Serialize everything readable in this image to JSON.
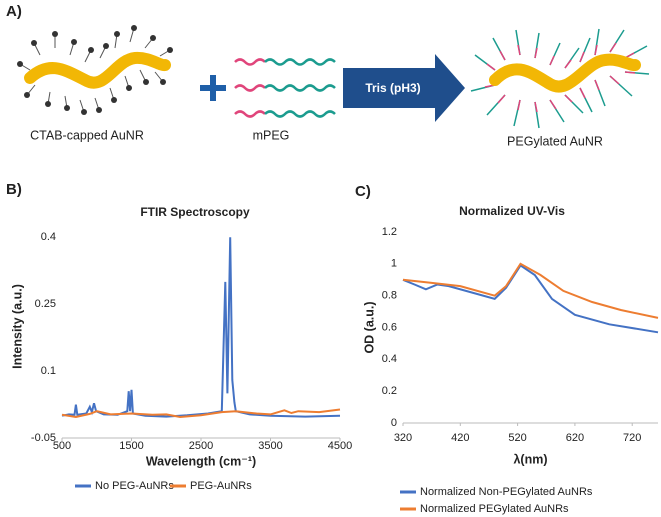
{
  "diagram": {
    "label": "A)",
    "left": "CTAB-capped AuNR",
    "middle": "mPEG",
    "arrow": "Tris (pH3)",
    "right": "PEGylated AuNR",
    "label_b": "B)",
    "label_c": "C)"
  },
  "chart_data": [
    {
      "type": "line",
      "title": "FTIR Spectroscopy",
      "x_label": "Wavelength (cm⁻¹)",
      "y_label": "Intensity (a.u.)",
      "xlim": [
        500,
        4500
      ],
      "xticks": [
        500,
        1500,
        2500,
        3500,
        4500
      ],
      "ylim": [
        -0.05,
        0.45
      ],
      "yticks": [
        -0.05,
        0.1,
        0.25,
        0.4
      ],
      "grid": false,
      "legend": "bottom",
      "series": [
        {
          "name": "No PEG-AuNRs",
          "color": "#4472c4",
          "x": [
            500,
            600,
            680,
            700,
            720,
            850,
            900,
            930,
            960,
            990,
            1100,
            1300,
            1440,
            1460,
            1480,
            1500,
            1520,
            1700,
            2000,
            2300,
            2600,
            2800,
            2850,
            2880,
            2920,
            2950,
            2980,
            3000,
            3200,
            3500,
            4000,
            4500
          ],
          "values": [
            0,
            0.003,
            0.002,
            0.025,
            0.002,
            0.005,
            0.02,
            0.008,
            0.028,
            0.01,
            0.003,
            0.002,
            0.01,
            0.055,
            0.01,
            0.058,
            0.005,
            0,
            -0.002,
            0.001,
            0.005,
            0.01,
            0.3,
            0.05,
            0.4,
            0.08,
            0.03,
            0.01,
            0.003,
            0,
            -0.002,
            0
          ]
        },
        {
          "name": "PEG-AuNRs",
          "color": "#ed7d31",
          "x": [
            500,
            700,
            900,
            1000,
            1200,
            1500,
            1800,
            2000,
            2200,
            2500,
            2800,
            3000,
            3300,
            3500,
            3700,
            3800,
            3900,
            4200,
            4500
          ],
          "values": [
            0.002,
            -0.003,
            0.004,
            0.01,
            0.003,
            0.005,
            0.002,
            0.003,
            -0.003,
            0.001,
            0.008,
            0.01,
            0.005,
            0.003,
            0.012,
            0.006,
            0.01,
            0.008,
            0.014
          ]
        }
      ]
    },
    {
      "type": "line",
      "title": "Normalized UV-Vis",
      "x_label": "λ(nm)",
      "y_label": "OD (a.u.)",
      "xlim": [
        320,
        765
      ],
      "xticks": [
        320,
        420,
        520,
        620,
        720
      ],
      "ylim": [
        0,
        1.2
      ],
      "yticks": [
        0,
        0.2,
        0.4,
        0.6,
        0.8,
        1,
        1.2
      ],
      "grid": false,
      "legend": "bottom",
      "series": [
        {
          "name": "Normalized Non-PEGylated AuNRs",
          "color": "#4472c4",
          "x": [
            320,
            340,
            360,
            380,
            400,
            440,
            480,
            500,
            525,
            550,
            580,
            620,
            680,
            765
          ],
          "values": [
            0.9,
            0.87,
            0.84,
            0.87,
            0.86,
            0.82,
            0.78,
            0.85,
            0.99,
            0.93,
            0.78,
            0.68,
            0.62,
            0.57
          ]
        },
        {
          "name": "Normalized PEGylated AuNRs",
          "color": "#ed7d31",
          "x": [
            320,
            370,
            420,
            480,
            500,
            525,
            560,
            600,
            650,
            700,
            765
          ],
          "values": [
            0.9,
            0.88,
            0.86,
            0.8,
            0.86,
            1.0,
            0.93,
            0.83,
            0.76,
            0.71,
            0.66
          ]
        }
      ]
    }
  ]
}
